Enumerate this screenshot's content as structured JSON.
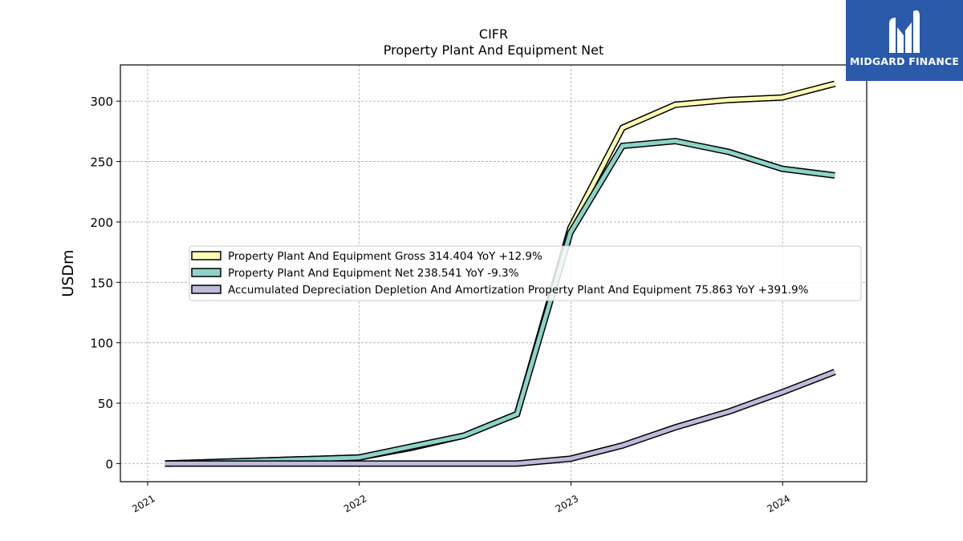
{
  "chart_data": {
    "type": "line",
    "title": "CIFR",
    "subtitle": "Property Plant And Equipment Net",
    "xlabel": "",
    "ylabel": "USDm",
    "xlim": [
      "2020-11-15",
      "2024-05-25"
    ],
    "ylim": [
      -15,
      330
    ],
    "x_ticks": [
      "2021",
      "2022",
      "2023",
      "2024"
    ],
    "y_ticks": [
      0,
      50,
      100,
      150,
      200,
      250,
      300
    ],
    "grid": true,
    "legend_position": "center-left",
    "series": [
      {
        "name": "Property Plant And Equipment Gross  314.404 YoY +12.9%",
        "color": "#ffffb3",
        "x": [
          "2021-01-31",
          "2021-12-31",
          "2022-03-31",
          "2022-06-30",
          "2022-09-30",
          "2022-12-31",
          "2023-03-31",
          "2023-06-30",
          "2023-09-30",
          "2023-12-31",
          "2024-03-31"
        ],
        "values": [
          0,
          5,
          13,
          23,
          41,
          195,
          278,
          297,
          301,
          303,
          314.404
        ]
      },
      {
        "name": "Property Plant And Equipment Net  238.541 YoY -9.3%",
        "color": "#8dd3c7",
        "x": [
          "2021-01-31",
          "2021-12-31",
          "2022-03-31",
          "2022-06-30",
          "2022-09-30",
          "2022-12-31",
          "2023-03-31",
          "2023-06-30",
          "2023-09-30",
          "2023-12-31",
          "2024-03-31"
        ],
        "values": [
          0,
          5,
          14,
          23,
          41,
          191,
          263,
          267,
          258,
          244,
          238.541
        ]
      },
      {
        "name": "Accumulated Depreciation Depletion And Amortization Property Plant And Equipment  75.863 YoY +391.9%",
        "color": "#bebada",
        "x": [
          "2021-01-31",
          "2021-12-31",
          "2022-03-31",
          "2022-06-30",
          "2022-09-30",
          "2022-12-31",
          "2023-03-31",
          "2023-06-30",
          "2023-09-30",
          "2023-12-31",
          "2024-03-31"
        ],
        "values": [
          0,
          0,
          0,
          0,
          0,
          4,
          15,
          30,
          43,
          59,
          75.863
        ]
      }
    ]
  },
  "logo": {
    "text": "MIDGARD FINANCE"
  }
}
